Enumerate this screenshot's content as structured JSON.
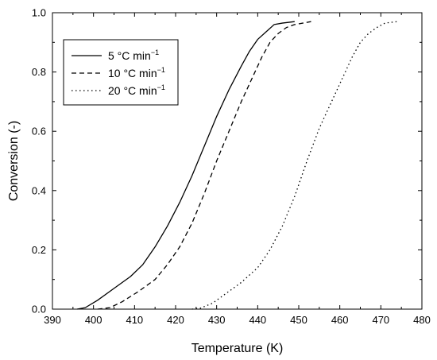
{
  "chart_data": {
    "type": "line",
    "title": "",
    "xlabel": "Temperature (K)",
    "ylabel": "Conversion (-)",
    "xlim": [
      390,
      480
    ],
    "ylim": [
      0.0,
      1.0
    ],
    "xticks": [
      "390",
      "400",
      "410",
      "420",
      "430",
      "440",
      "450",
      "460",
      "470",
      "480"
    ],
    "yticks": [
      "0.0",
      "0.2",
      "0.4",
      "0.6",
      "0.8",
      "1.0"
    ],
    "grid": false,
    "legend_position": "top-left",
    "series": [
      {
        "name": "5 °C min",
        "name_sup": "−1",
        "dash": "solid",
        "color": "#000000",
        "x": [
          396,
          398,
          401,
          405,
          409,
          412,
          415,
          418,
          421,
          424,
          427,
          430,
          433,
          436,
          438,
          440,
          442,
          444,
          446,
          449
        ],
        "y": [
          0.0,
          0.005,
          0.03,
          0.07,
          0.11,
          0.15,
          0.21,
          0.28,
          0.36,
          0.45,
          0.55,
          0.65,
          0.74,
          0.82,
          0.87,
          0.91,
          0.935,
          0.96,
          0.965,
          0.97
        ]
      },
      {
        "name": "10 °C min",
        "name_sup": "−1",
        "dash": "dashed",
        "color": "#000000",
        "x": [
          401,
          404,
          407,
          411,
          415,
          418,
          421,
          424,
          427,
          430,
          433,
          436,
          439,
          441,
          443,
          445,
          447,
          449,
          451,
          453
        ],
        "y": [
          0.0,
          0.005,
          0.025,
          0.06,
          0.1,
          0.15,
          0.21,
          0.29,
          0.39,
          0.5,
          0.6,
          0.7,
          0.79,
          0.85,
          0.9,
          0.93,
          0.95,
          0.96,
          0.965,
          0.97
        ]
      },
      {
        "name": "20 °C min",
        "name_sup": "−1",
        "dash": "dotted",
        "color": "#000000",
        "x": [
          424,
          426,
          429,
          432,
          436,
          440,
          443,
          446,
          449,
          452,
          455,
          458,
          461,
          463,
          465,
          467,
          469,
          471,
          474
        ],
        "y": [
          0.0,
          0.003,
          0.02,
          0.05,
          0.09,
          0.14,
          0.2,
          0.28,
          0.38,
          0.5,
          0.61,
          0.7,
          0.79,
          0.85,
          0.9,
          0.93,
          0.95,
          0.965,
          0.97
        ]
      }
    ]
  }
}
